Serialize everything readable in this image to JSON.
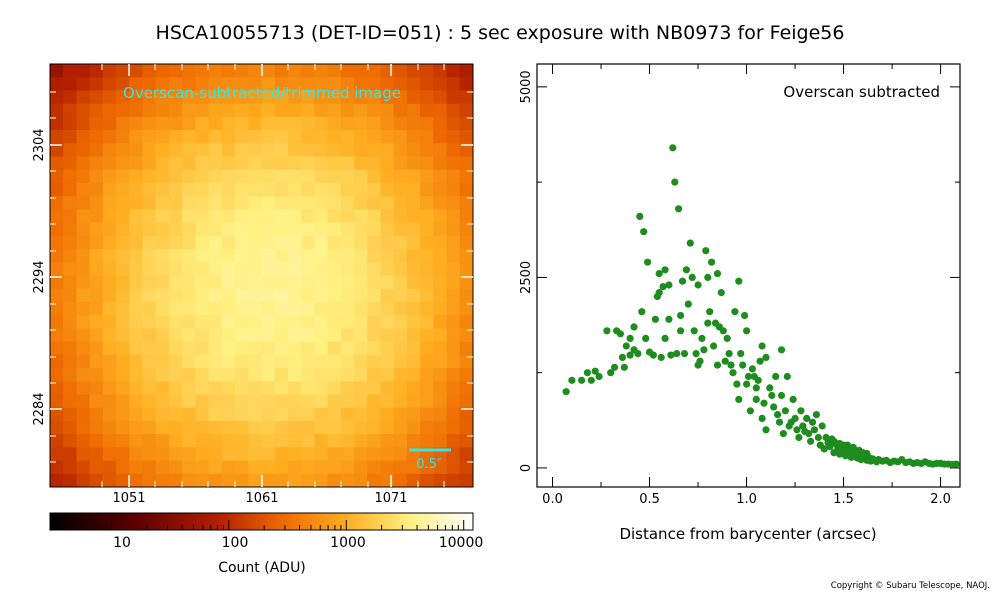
{
  "title": "HSCA10055713 (DET-ID=051) :  5 sec exposure with NB0973 for Feige56",
  "copyright": "Copyright © Subaru Telescope, NAOJ.",
  "colors": {
    "scatter_points": "#1e8c1e",
    "image_label": "#33e6e6",
    "scale_bar": "#33e6e6",
    "frame": "#000000"
  },
  "chart_data": [
    {
      "type": "heatmap",
      "annotation": "Overscan-subtracted/trimmed image",
      "scale_bar_label": "0.5″",
      "x_ticks": [
        "1051",
        "1061",
        "1071"
      ],
      "y_ticks": [
        "2304",
        "2294",
        "2284"
      ],
      "colormap": "hot (black-red-orange-yellow-white)",
      "center_approx": {
        "x": 1063,
        "y": 2292
      },
      "peak_count_approx": 4200
    },
    {
      "type": "colorbar",
      "scale": "log",
      "range": [
        3,
        12000
      ],
      "ticks": [
        "10",
        "100",
        "1000",
        "10000"
      ],
      "label": "Count (ADU)"
    },
    {
      "type": "scatter",
      "annotation": "Overscan subtracted",
      "xlabel": "Distance from barycenter (arcsec)",
      "ylabel": "",
      "xlim": [
        -0.08,
        2.1
      ],
      "ylim": [
        -250,
        5300
      ],
      "x_ticks": [
        "0.0",
        "0.5",
        "1.0",
        "1.5",
        "2.0"
      ],
      "y_ticks": [
        "0",
        "2500",
        "5000"
      ],
      "points": [
        [
          0.07,
          1000
        ],
        [
          0.1,
          1150
        ],
        [
          0.15,
          1150
        ],
        [
          0.18,
          1250
        ],
        [
          0.2,
          1150
        ],
        [
          0.22,
          1270
        ],
        [
          0.24,
          1200
        ],
        [
          0.28,
          1800
        ],
        [
          0.3,
          1250
        ],
        [
          0.32,
          1320
        ],
        [
          0.33,
          1800
        ],
        [
          0.35,
          1760
        ],
        [
          0.36,
          1450
        ],
        [
          0.37,
          1320
        ],
        [
          0.38,
          1600
        ],
        [
          0.4,
          1700
        ],
        [
          0.4,
          1480
        ],
        [
          0.42,
          1850
        ],
        [
          0.42,
          1550
        ],
        [
          0.44,
          1500
        ],
        [
          0.45,
          3300
        ],
        [
          0.46,
          2050
        ],
        [
          0.47,
          3100
        ],
        [
          0.48,
          1700
        ],
        [
          0.49,
          2700
        ],
        [
          0.5,
          1520
        ],
        [
          0.52,
          1480
        ],
        [
          0.53,
          1950
        ],
        [
          0.54,
          2250
        ],
        [
          0.55,
          2300
        ],
        [
          0.55,
          2550
        ],
        [
          0.56,
          1450
        ],
        [
          0.57,
          2380
        ],
        [
          0.58,
          1700
        ],
        [
          0.58,
          2600
        ],
        [
          0.6,
          2400
        ],
        [
          0.6,
          1950
        ],
        [
          0.61,
          1480
        ],
        [
          0.62,
          4200
        ],
        [
          0.63,
          3750
        ],
        [
          0.64,
          1500
        ],
        [
          0.65,
          3400
        ],
        [
          0.66,
          1800
        ],
        [
          0.66,
          2000
        ],
        [
          0.67,
          2450
        ],
        [
          0.68,
          1500
        ],
        [
          0.69,
          2600
        ],
        [
          0.7,
          2150
        ],
        [
          0.71,
          2950
        ],
        [
          0.72,
          2500
        ],
        [
          0.73,
          1800
        ],
        [
          0.74,
          1500
        ],
        [
          0.75,
          1350
        ],
        [
          0.75,
          2400
        ],
        [
          0.76,
          1400
        ],
        [
          0.77,
          1700
        ],
        [
          0.78,
          1550
        ],
        [
          0.79,
          2850
        ],
        [
          0.8,
          2500
        ],
        [
          0.8,
          1900
        ],
        [
          0.81,
          2050
        ],
        [
          0.82,
          2700
        ],
        [
          0.83,
          1600
        ],
        [
          0.84,
          1900
        ],
        [
          0.85,
          2550
        ],
        [
          0.85,
          1350
        ],
        [
          0.86,
          1850
        ],
        [
          0.87,
          2300
        ],
        [
          0.88,
          1800
        ],
        [
          0.89,
          1400
        ],
        [
          0.9,
          1700
        ],
        [
          0.91,
          1500
        ],
        [
          0.92,
          1350
        ],
        [
          0.93,
          1250
        ],
        [
          0.94,
          2050
        ],
        [
          0.95,
          1100
        ],
        [
          0.96,
          2450
        ],
        [
          0.96,
          900
        ],
        [
          0.97,
          1500
        ],
        [
          0.98,
          1350
        ],
        [
          0.99,
          2000
        ],
        [
          1.0,
          1100
        ],
        [
          1.0,
          1800
        ],
        [
          1.01,
          1200
        ],
        [
          1.02,
          750
        ],
        [
          1.03,
          1300
        ],
        [
          1.04,
          1200
        ],
        [
          1.05,
          900
        ],
        [
          1.05,
          1050
        ],
        [
          1.06,
          1150
        ],
        [
          1.07,
          1400
        ],
        [
          1.08,
          1600
        ],
        [
          1.08,
          650
        ],
        [
          1.09,
          850
        ],
        [
          1.1,
          1450
        ],
        [
          1.1,
          500
        ],
        [
          1.12,
          1050
        ],
        [
          1.13,
          950
        ],
        [
          1.14,
          800
        ],
        [
          1.15,
          1200
        ],
        [
          1.16,
          700
        ],
        [
          1.17,
          600
        ],
        [
          1.18,
          1550
        ],
        [
          1.18,
          950
        ],
        [
          1.19,
          450
        ],
        [
          1.2,
          750
        ],
        [
          1.21,
          1200
        ],
        [
          1.22,
          550
        ],
        [
          1.23,
          600
        ],
        [
          1.24,
          900
        ],
        [
          1.25,
          650
        ],
        [
          1.26,
          500
        ],
        [
          1.27,
          400
        ],
        [
          1.28,
          750
        ],
        [
          1.29,
          550
        ],
        [
          1.3,
          480
        ],
        [
          1.31,
          650
        ],
        [
          1.32,
          450
        ],
        [
          1.33,
          350
        ],
        [
          1.34,
          600
        ],
        [
          1.35,
          500
        ],
        [
          1.36,
          700
        ],
        [
          1.37,
          400
        ],
        [
          1.38,
          300
        ],
        [
          1.39,
          550
        ],
        [
          1.4,
          250
        ],
        [
          1.41,
          400
        ],
        [
          1.42,
          330
        ],
        [
          1.43,
          280
        ],
        [
          1.44,
          380
        ],
        [
          1.45,
          200
        ],
        [
          1.46,
          320
        ],
        [
          1.47,
          260
        ],
        [
          1.48,
          180
        ],
        [
          1.49,
          280
        ],
        [
          1.5,
          240
        ],
        [
          1.51,
          160
        ],
        [
          1.52,
          300
        ],
        [
          1.53,
          200
        ],
        [
          1.54,
          140
        ],
        [
          1.55,
          220
        ],
        [
          1.56,
          180
        ],
        [
          1.57,
          130
        ],
        [
          1.58,
          190
        ],
        [
          1.59,
          110
        ],
        [
          1.6,
          160
        ],
        [
          1.61,
          120
        ],
        [
          1.62,
          100
        ],
        [
          1.63,
          140
        ],
        [
          1.64,
          90
        ],
        [
          1.65,
          120
        ],
        [
          1.66,
          100
        ],
        [
          1.67,
          80
        ],
        [
          1.68,
          110
        ],
        [
          1.7,
          90
        ],
        [
          1.72,
          100
        ],
        [
          1.74,
          70
        ],
        [
          1.76,
          90
        ],
        [
          1.78,
          80
        ],
        [
          1.8,
          110
        ],
        [
          1.82,
          70
        ],
        [
          1.84,
          80
        ],
        [
          1.86,
          60
        ],
        [
          1.88,
          70
        ],
        [
          1.9,
          60
        ],
        [
          1.92,
          80
        ],
        [
          1.94,
          60
        ],
        [
          1.96,
          50
        ],
        [
          1.98,
          60
        ],
        [
          2.0,
          60
        ],
        [
          2.02,
          50
        ],
        [
          2.04,
          50
        ],
        [
          2.06,
          45
        ],
        [
          2.08,
          50
        ],
        [
          1.45,
          350
        ],
        [
          1.5,
          300
        ],
        [
          1.52,
          250
        ],
        [
          1.48,
          320
        ],
        [
          1.55,
          270
        ],
        [
          1.58,
          230
        ],
        [
          1.6,
          200
        ],
        [
          1.62,
          190
        ]
      ]
    }
  ]
}
